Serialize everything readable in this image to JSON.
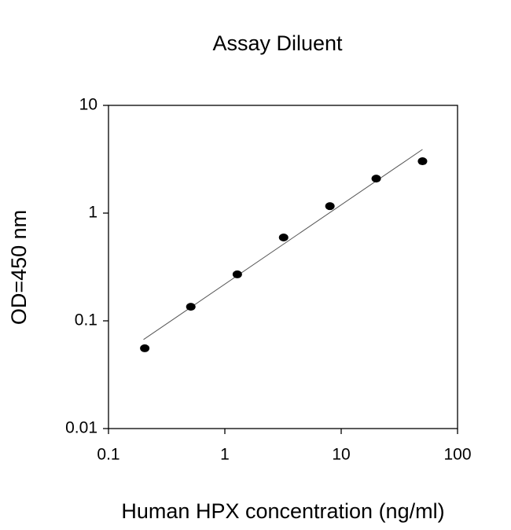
{
  "chart_data": {
    "type": "scatter",
    "title": "Assay Diluent",
    "x_label": "Human HPX concentration (ng/ml)",
    "y_label": "OD=450 nm",
    "x": [
      0.205,
      0.51,
      1.28,
      3.2,
      8,
      20,
      50
    ],
    "values": [
      0.0556,
      0.135,
      0.27,
      0.594,
      1.16,
      2.09,
      3.03
    ],
    "color": "#000000",
    "fit": {
      "x": [
        0.2,
        50
      ],
      "y": [
        0.067,
        3.9
      ]
    },
    "xlog": true,
    "ylog": true,
    "xlim": [
      0.1,
      100
    ],
    "ylim": [
      0.01,
      10
    ],
    "xticks": [
      0.1,
      1,
      10,
      100
    ],
    "yticks": [
      0.01,
      0.1,
      1,
      10
    ]
  }
}
